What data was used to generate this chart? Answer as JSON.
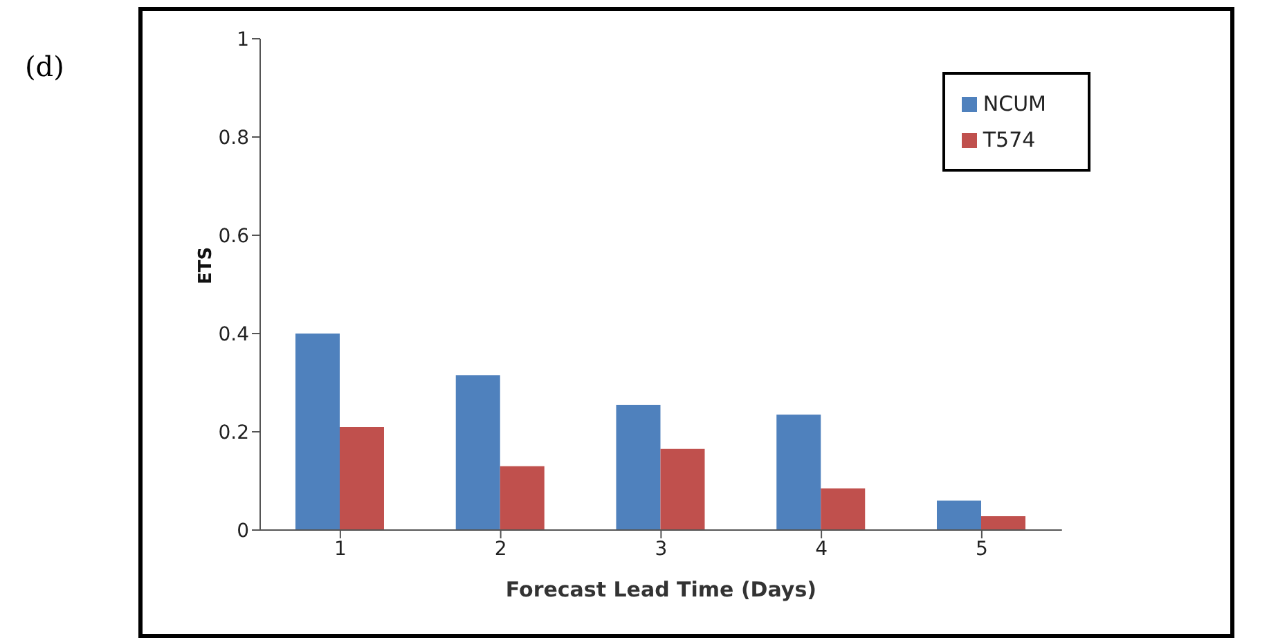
{
  "chart_data": {
    "type": "bar",
    "annotations": [
      "(d)"
    ],
    "xlabel": "Forecast Lead Time (Days)",
    "ylabel": "ETS",
    "categories": [
      "1",
      "2",
      "3",
      "4",
      "5"
    ],
    "series": [
      {
        "name": "NCUM",
        "color": "#4f81bd",
        "values": [
          0.4,
          0.315,
          0.255,
          0.235,
          0.06
        ]
      },
      {
        "name": "T574",
        "color": "#c0504d",
        "values": [
          0.21,
          0.13,
          0.165,
          0.085,
          0.028
        ]
      }
    ],
    "ylim": [
      0,
      1
    ],
    "yticks": [
      0,
      0.2,
      0.4,
      0.6,
      0.8,
      1
    ],
    "legend": "top right",
    "grid": false
  }
}
